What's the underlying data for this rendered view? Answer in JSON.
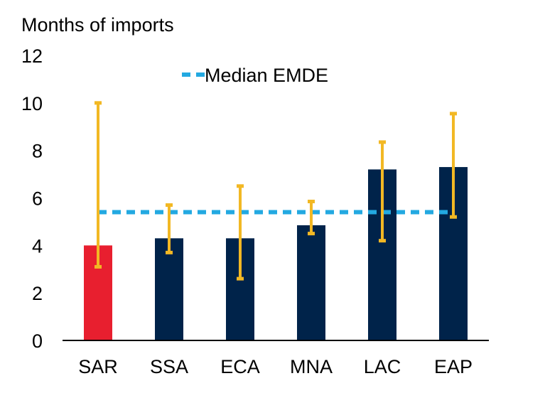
{
  "chart_data": {
    "type": "bar",
    "ylabel": "Months of imports",
    "ylim": [
      0,
      12
    ],
    "yticks": [
      0,
      2,
      4,
      6,
      8,
      10,
      12
    ],
    "categories": [
      "SAR",
      "SSA",
      "ECA",
      "MNA",
      "LAC",
      "EAP"
    ],
    "values": [
      4.0,
      4.3,
      4.3,
      4.85,
      7.2,
      7.3
    ],
    "error_low": [
      3.1,
      3.7,
      2.6,
      4.5,
      4.2,
      5.2
    ],
    "error_high": [
      10.0,
      5.7,
      6.5,
      5.85,
      8.35,
      9.55
    ],
    "highlight_index": 0,
    "reference_line": {
      "name": "Median EMDE",
      "value": 5.4
    },
    "legend": {
      "label": "Median EMDE",
      "placement": "top-center"
    },
    "colors": {
      "bar": "#00234A",
      "highlight_bar": "#E81F2F",
      "error_bar": "#F2B824",
      "reference_line": "#23A9E1",
      "axis": "#000000"
    }
  }
}
